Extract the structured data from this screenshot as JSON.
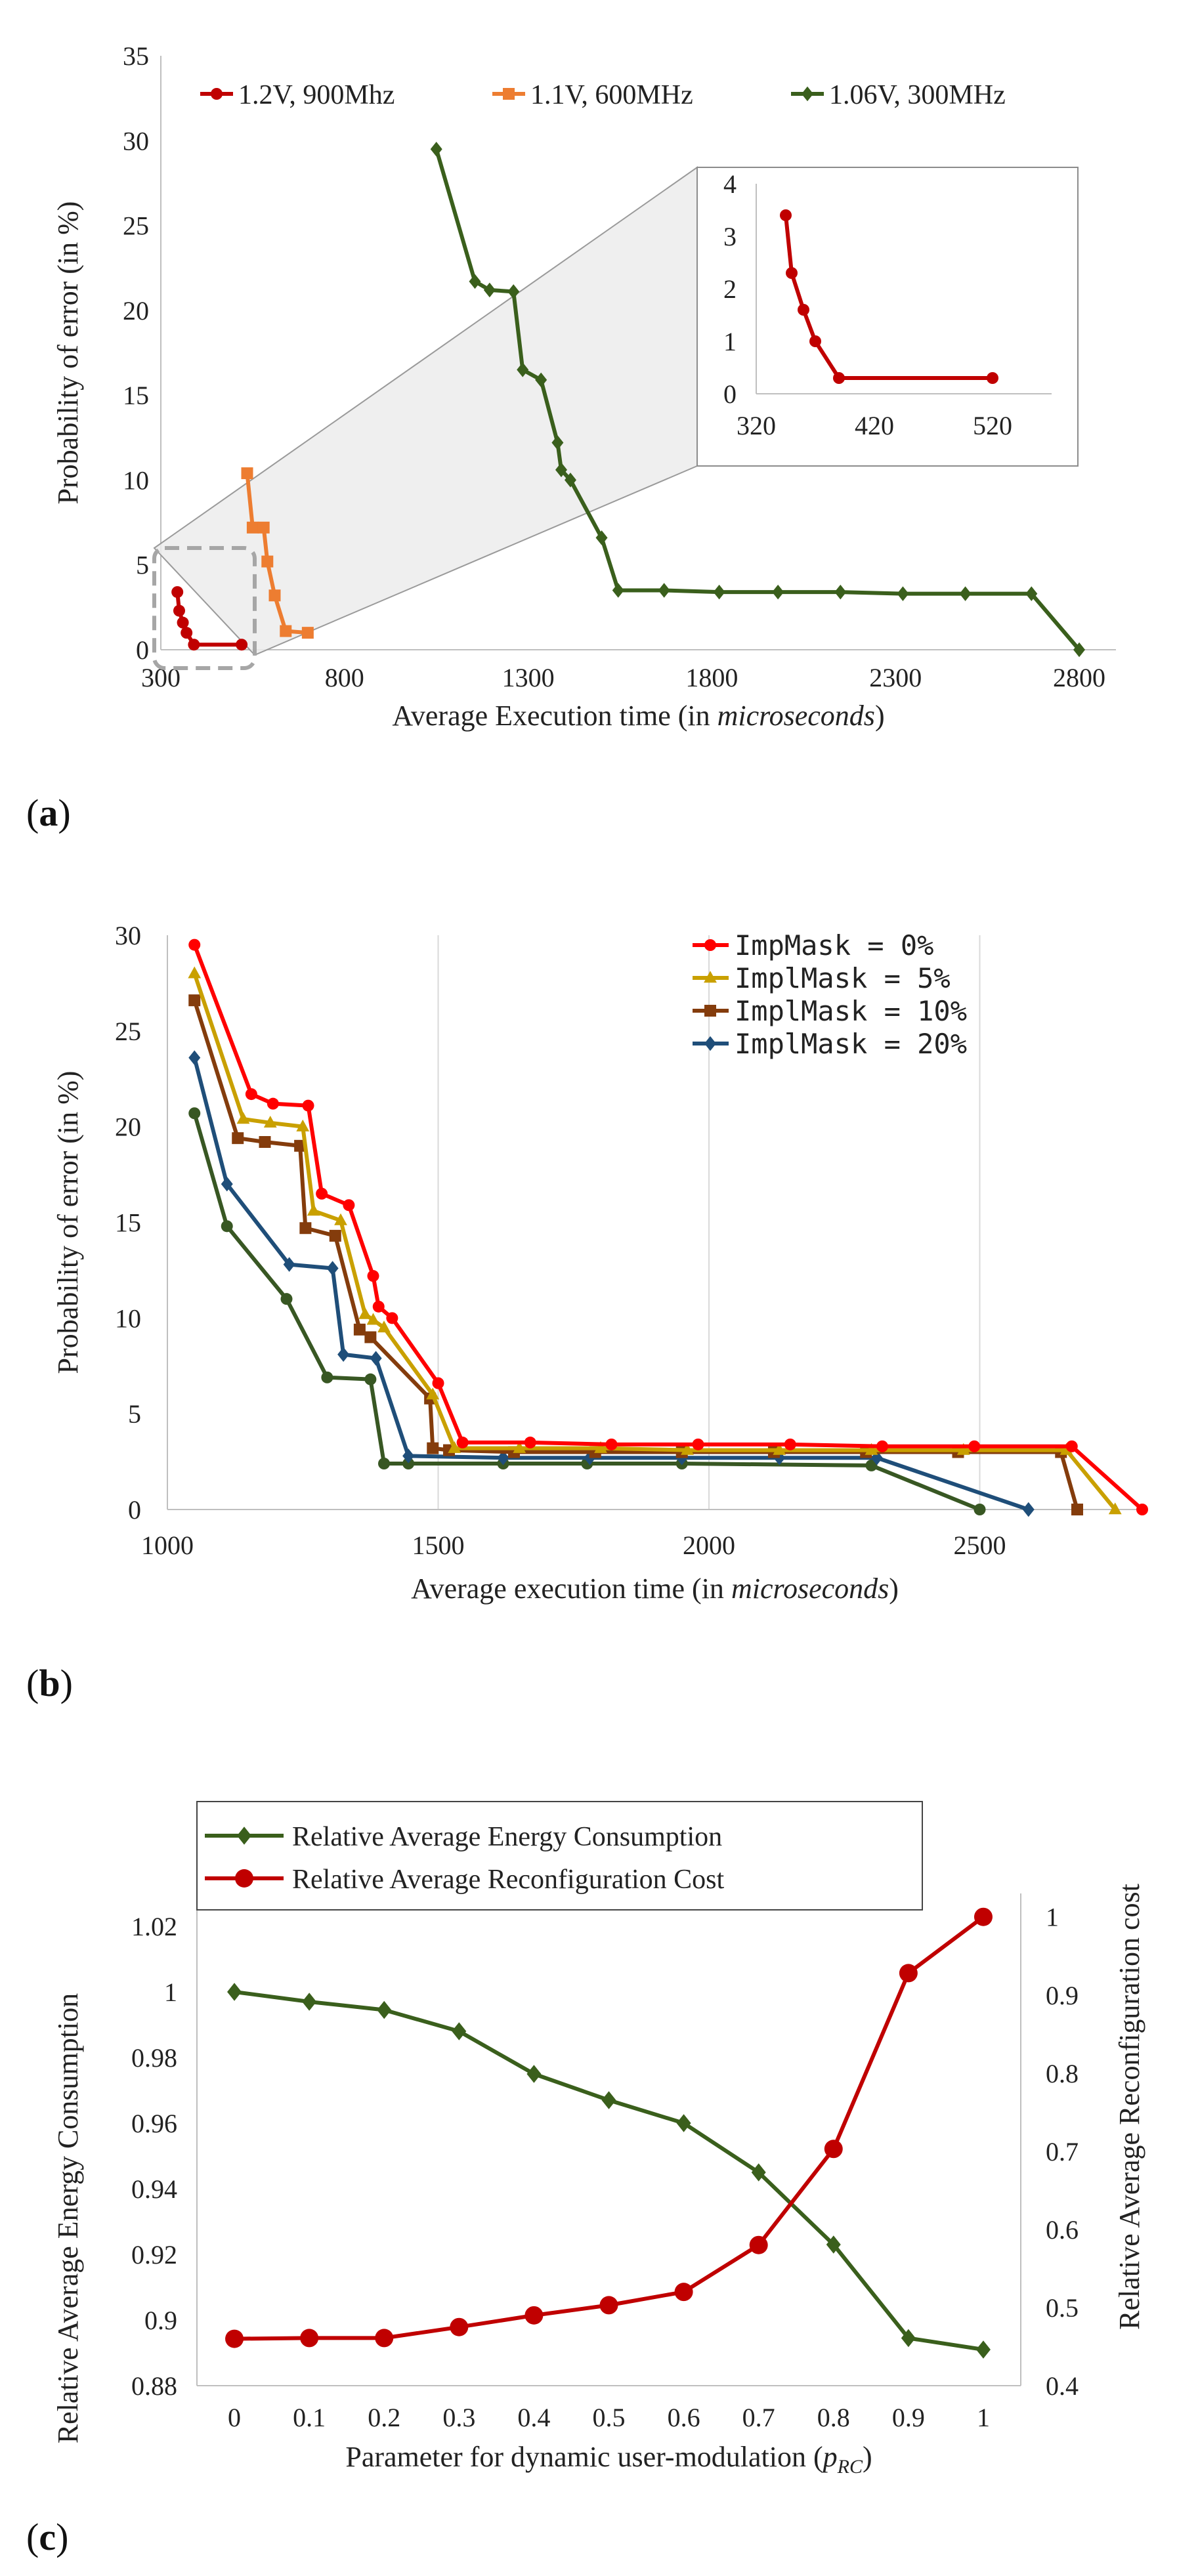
{
  "colors": {
    "red": "#c00000",
    "orange": "#ed7d31",
    "green": "#3a5f1c",
    "brightRed": "#ff0000",
    "gold": "#c9a000",
    "brown": "#843c0c",
    "blue": "#1f4e79",
    "darkGreen": "#385723"
  },
  "panels": {
    "a": {
      "label_prefix": "(",
      "label_letter": "a",
      "label_suffix": ")"
    },
    "b": {
      "label_prefix": "(",
      "label_letter": "b",
      "label_suffix": ")"
    },
    "c": {
      "label_prefix": "(",
      "label_letter": "c",
      "label_suffix": ")"
    }
  },
  "chart_data": [
    {
      "id": "a",
      "type": "line",
      "xlabel_prefix": "Average Execution time (in ",
      "xlabel_italic": "microseconds",
      "xlabel_suffix": ")",
      "ylabel": "Probability of error (in %)",
      "xlim": [
        300,
        2900
      ],
      "ylim": [
        0,
        35
      ],
      "xticks": [
        300,
        800,
        1300,
        1800,
        2300,
        2800
      ],
      "yticks": [
        0,
        5,
        10,
        15,
        20,
        25,
        30,
        35
      ],
      "legend_position": "top",
      "series": [
        {
          "name": "1.2V, 900Mhz",
          "color": "#c00000",
          "marker": "circle",
          "x": [
            345,
            350,
            360,
            370,
            390,
            520
          ],
          "y": [
            3.4,
            2.3,
            1.6,
            1.0,
            0.3,
            0.3
          ]
        },
        {
          "name": "1.1V, 600MHz",
          "color": "#ed7d31",
          "marker": "square",
          "x": [
            535,
            550,
            580,
            590,
            610,
            640,
            700
          ],
          "y": [
            10.4,
            7.2,
            7.2,
            5.2,
            3.2,
            1.1,
            1.0
          ]
        },
        {
          "name": "1.06V, 300MHz",
          "color": "#3a5f1c",
          "marker": "diamond",
          "x": [
            1050,
            1155,
            1195,
            1260,
            1285,
            1335,
            1380,
            1390,
            1415,
            1500,
            1545,
            1670,
            1820,
            1980,
            2150,
            2320,
            2490,
            2670,
            2800
          ],
          "y": [
            29.5,
            21.7,
            21.2,
            21.1,
            16.5,
            15.9,
            12.2,
            10.6,
            10.0,
            6.6,
            3.5,
            3.5,
            3.4,
            3.4,
            3.4,
            3.3,
            3.3,
            3.3,
            0
          ]
        }
      ],
      "inset": {
        "xlim": [
          320,
          570
        ],
        "ylim": [
          0,
          4
        ],
        "xticks": [
          320,
          420,
          520
        ],
        "yticks": [
          0,
          1,
          2,
          3,
          4
        ],
        "x": [
          345,
          350,
          360,
          370,
          390,
          520
        ],
        "y": [
          3.4,
          2.3,
          1.6,
          1.0,
          0.3,
          0.3
        ]
      }
    },
    {
      "id": "b",
      "type": "line",
      "xlabel_prefix": "Average execution time (in ",
      "xlabel_italic": "microseconds",
      "xlabel_suffix": ")",
      "ylabel": "Probability of error (in %)",
      "xlim": [
        1000,
        2800
      ],
      "ylim": [
        0,
        30
      ],
      "xticks": [
        1000,
        1500,
        2000,
        2500
      ],
      "yticks": [
        0,
        5,
        10,
        15,
        20,
        25,
        30
      ],
      "legend_position": "top-right",
      "series": [
        {
          "name": "ImpMask = 0%",
          "color": "#ff0000",
          "marker": "circle",
          "x": [
            1050,
            1155,
            1195,
            1260,
            1285,
            1335,
            1380,
            1390,
            1415,
            1500,
            1545,
            1670,
            1820,
            1980,
            2150,
            2320,
            2490,
            2670,
            2800
          ],
          "y": [
            29.5,
            21.7,
            21.2,
            21.1,
            16.5,
            15.9,
            12.2,
            10.6,
            10.0,
            6.6,
            3.5,
            3.5,
            3.4,
            3.4,
            3.4,
            3.3,
            3.3,
            3.3,
            0
          ]
        },
        {
          "name": "ImplMask = 5%",
          "color": "#c9a000",
          "marker": "triangle",
          "x": [
            1050,
            1140,
            1190,
            1250,
            1270,
            1320,
            1365,
            1380,
            1400,
            1490,
            1530,
            1650,
            1800,
            1960,
            2130,
            2300,
            2470,
            2660,
            2750
          ],
          "y": [
            28.0,
            20.4,
            20.2,
            20.0,
            15.6,
            15.1,
            10.2,
            9.9,
            9.5,
            6.0,
            3.2,
            3.2,
            3.2,
            3.1,
            3.1,
            3.1,
            3.1,
            3.1,
            0
          ]
        },
        {
          "name": "ImplMask = 10%",
          "color": "#843c0c",
          "marker": "square",
          "x": [
            1050,
            1130,
            1180,
            1245,
            1255,
            1310,
            1355,
            1375,
            1485,
            1490,
            1520,
            1640,
            1790,
            1950,
            2120,
            2290,
            2460,
            2650,
            2680
          ],
          "y": [
            26.6,
            19.4,
            19.2,
            19.0,
            14.7,
            14.3,
            9.4,
            9.0,
            5.8,
            3.2,
            3.1,
            3.0,
            3.0,
            3.0,
            3.0,
            3.0,
            3.0,
            3.0,
            0
          ]
        },
        {
          "name": "ImplMask = 20%",
          "color": "#1f4e79",
          "marker": "diamond",
          "x": [
            1050,
            1110,
            1225,
            1305,
            1325,
            1385,
            1445,
            1620,
            1780,
            1950,
            2130,
            2310,
            2590
          ],
          "y": [
            23.6,
            17.0,
            12.8,
            12.6,
            8.1,
            7.9,
            2.8,
            2.7,
            2.7,
            2.7,
            2.7,
            2.7,
            0
          ]
        },
        {
          "name": "",
          "color": "#385723",
          "marker": "circle",
          "x": [
            1050,
            1110,
            1220,
            1295,
            1375,
            1400,
            1445,
            1620,
            1775,
            1950,
            2300,
            2500
          ],
          "y": [
            20.7,
            14.8,
            11.0,
            6.9,
            6.8,
            2.4,
            2.4,
            2.4,
            2.4,
            2.4,
            2.3,
            0
          ]
        }
      ]
    },
    {
      "id": "c",
      "type": "line",
      "xlabel_prefix": "Parameter for dynamic user-modulation (",
      "xlabel_italic": "p",
      "xlabel_sub": "RC",
      "xlabel_suffix": ")",
      "ylabel": "Relative Average Energy Consumption",
      "ylabel_right": "Relative Average Reconfiguration cost",
      "categories": [
        "0",
        "0.1",
        "0.2",
        "0.3",
        "0.4",
        "0.5",
        "0.6",
        "0.7",
        "0.8",
        "0.9",
        "1"
      ],
      "ylim": [
        0.88,
        1.03
      ],
      "yticks": [
        "0.88",
        "0.9",
        "0.92",
        "0.94",
        "0.96",
        "0.98",
        "1",
        "1.02"
      ],
      "ylim_right": [
        0.4,
        1.03
      ],
      "yticks_right": [
        "0.4",
        "0.5",
        "0.6",
        "0.7",
        "0.8",
        "0.9",
        "1"
      ],
      "legend_position": "top",
      "series": [
        {
          "name": "Relative Average Energy Consumption",
          "color": "#3a5f1c",
          "marker": "diamond",
          "axis": "left",
          "values": [
            1.0,
            0.997,
            0.9945,
            0.988,
            0.975,
            0.967,
            0.96,
            0.945,
            0.923,
            0.8945,
            0.891
          ]
        },
        {
          "name": "Relative Average Reconfiguration Cost",
          "color": "#c00000",
          "marker": "circle",
          "axis": "right",
          "values": [
            0.46,
            0.461,
            0.461,
            0.475,
            0.49,
            0.503,
            0.52,
            0.58,
            0.703,
            0.928,
            1.0
          ]
        }
      ]
    }
  ]
}
